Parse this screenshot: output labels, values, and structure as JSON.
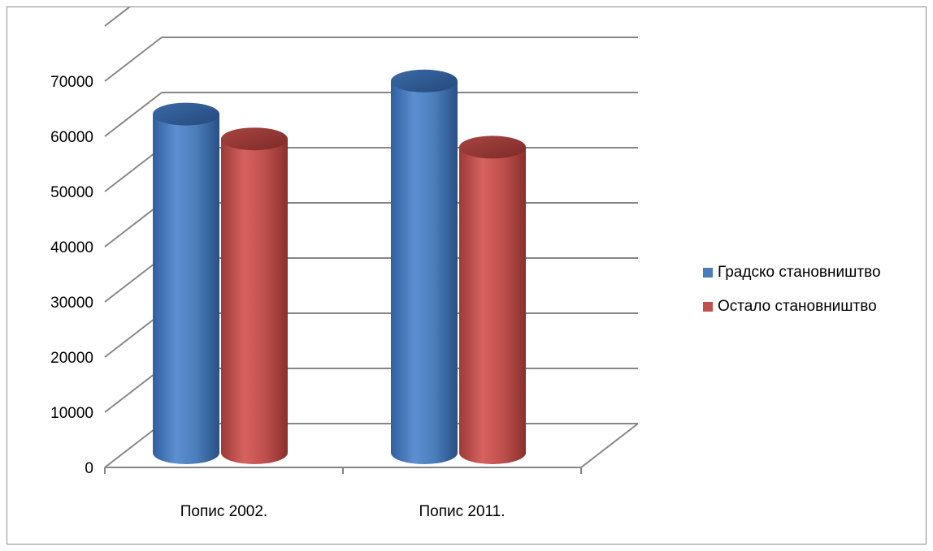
{
  "chart_data": {
    "type": "bar",
    "title": "",
    "xlabel": "",
    "ylabel": "",
    "categories": [
      "Попис 2002.",
      "Попис 2011."
    ],
    "series": [
      {
        "name": "Градско становништво",
        "values": [
          63000,
          69000
        ],
        "color": "#4a7ebb"
      },
      {
        "name": "Остало становништво",
        "values": [
          58500,
          57000
        ],
        "color": "#c0504d"
      }
    ],
    "ylim": [
      0,
      70000
    ],
    "yticks": [
      0,
      10000,
      20000,
      30000,
      40000,
      50000,
      60000,
      70000
    ],
    "ytick_labels": [
      "0",
      "10000",
      "20000",
      "30000",
      "40000",
      "50000",
      "60000",
      "70000"
    ],
    "grid": true,
    "legend_position": "right",
    "style": "3d-cylinder"
  }
}
